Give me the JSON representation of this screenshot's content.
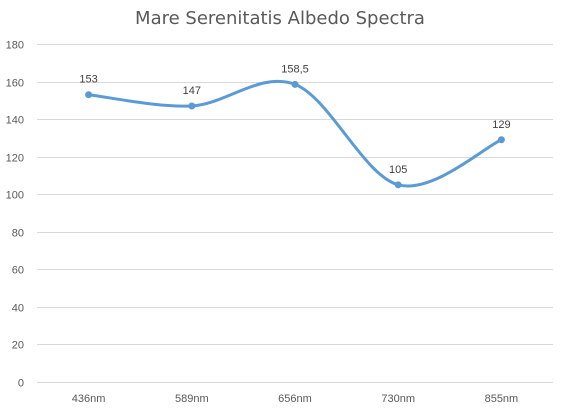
{
  "chart_data": {
    "type": "line",
    "title": "Mare Serenitatis Albedo Spectra",
    "xlabel": "",
    "ylabel": "",
    "categories": [
      "436nm",
      "589nm",
      "656nm",
      "730nm",
      "855nm"
    ],
    "series": [
      {
        "values": [
          153,
          147,
          158.5,
          105,
          129
        ],
        "data_labels": [
          "153",
          "147",
          "158,5",
          "105",
          "129"
        ],
        "color": "#5b9bd5"
      }
    ],
    "ylim": [
      0,
      180
    ],
    "yticks": [
      0,
      20,
      40,
      60,
      80,
      100,
      120,
      140,
      160,
      180
    ],
    "smooth": true,
    "grid": true,
    "legend": "none"
  }
}
